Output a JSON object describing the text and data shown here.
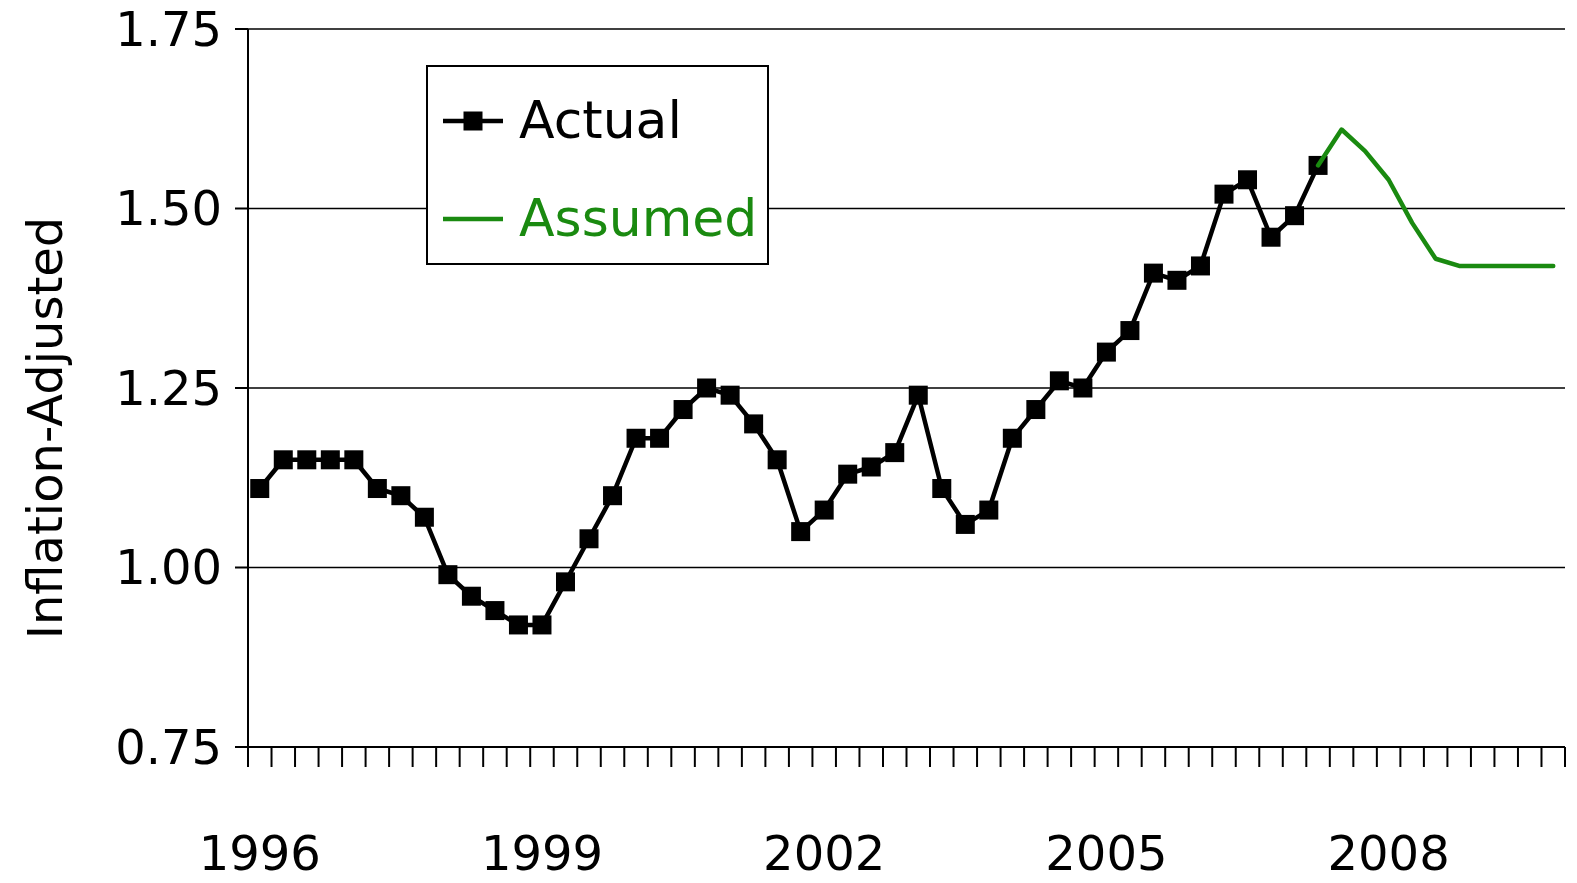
{
  "chart_data": {
    "type": "line",
    "ylabel": "Inflation-Adjusted",
    "categories": [
      "1996",
      null,
      null,
      null,
      null,
      null,
      null,
      null,
      null,
      null,
      null,
      null,
      "1999",
      null,
      null,
      null,
      null,
      null,
      null,
      null,
      null,
      null,
      null,
      null,
      "2002",
      null,
      null,
      null,
      null,
      null,
      null,
      null,
      null,
      null,
      null,
      null,
      "2005",
      null,
      null,
      null,
      null,
      null,
      null,
      null,
      null,
      null,
      null,
      null,
      "2008",
      null,
      null,
      null,
      null,
      null,
      null,
      null
    ],
    "series": [
      {
        "name": "Actual",
        "color": "#000000",
        "marker": "square",
        "values": [
          1.11,
          1.15,
          1.15,
          1.15,
          1.15,
          1.11,
          1.1,
          1.07,
          0.99,
          0.96,
          0.94,
          0.92,
          0.92,
          0.98,
          1.04,
          1.1,
          1.18,
          1.18,
          1.22,
          1.25,
          1.24,
          1.2,
          1.15,
          1.05,
          1.08,
          1.13,
          1.14,
          1.16,
          1.24,
          1.11,
          1.06,
          1.08,
          1.18,
          1.22,
          1.26,
          1.25,
          1.3,
          1.33,
          1.41,
          1.4,
          1.42,
          1.52,
          1.54,
          1.46,
          1.49,
          1.56,
          null,
          null,
          null,
          null,
          null,
          null,
          null,
          null,
          null,
          null
        ]
      },
      {
        "name": "Assumed",
        "color": "#1a8a10",
        "marker": "none",
        "values": [
          null,
          null,
          null,
          null,
          null,
          null,
          null,
          null,
          null,
          null,
          null,
          null,
          null,
          null,
          null,
          null,
          null,
          null,
          null,
          null,
          null,
          null,
          null,
          null,
          null,
          null,
          null,
          null,
          null,
          null,
          null,
          null,
          null,
          null,
          null,
          null,
          null,
          null,
          null,
          null,
          null,
          null,
          null,
          null,
          null,
          1.56,
          1.61,
          1.58,
          1.54,
          1.48,
          1.43,
          1.42,
          1.42,
          1.42,
          1.42,
          1.42
        ]
      }
    ],
    "ylim": [
      0.75,
      1.75
    ],
    "yticks": [
      {
        "value": 0.75,
        "label": "0.75"
      },
      {
        "value": 1,
        "label": "1.00"
      },
      {
        "value": 1.25,
        "label": "1.25"
      },
      {
        "value": 1.5,
        "label": "1.50"
      },
      {
        "value": 1.75,
        "label": "1.75"
      }
    ],
    "grid": "y",
    "legend": "top left",
    "line_style": "solid"
  }
}
